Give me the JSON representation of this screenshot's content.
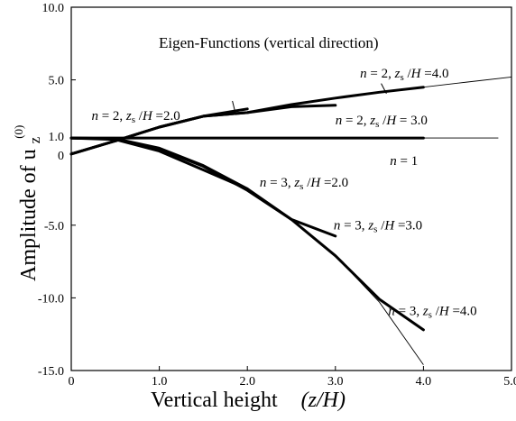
{
  "chart_data": {
    "type": "line",
    "title": "Eigen-Functions (vertical direction)",
    "xlabel_text": "Vertical height",
    "xlabel_var": "(z/H)",
    "ylabel_text": "Amplitude of u",
    "ylabel_sub": "z",
    "ylabel_sup": "(0)",
    "xlim": [
      0,
      5
    ],
    "ylim": [
      -15,
      10
    ],
    "grid": false,
    "legend": "none",
    "x_ticks": [
      0,
      1,
      2,
      3,
      4,
      5
    ],
    "x_tick_labels": [
      "0",
      "1.0",
      "2.0",
      "3.0",
      "4.0",
      "5.0"
    ],
    "y_ticks": [
      10,
      5,
      1,
      0,
      -5,
      -10,
      -15
    ],
    "y_tick_labels": [
      "10.0",
      "5.0",
      "1.0",
      "0",
      "-5.0",
      "-10.0",
      "-15.0"
    ],
    "reference_curves": [
      {
        "x": [
          0,
          0.5,
          1.0,
          1.5,
          2.0,
          2.5,
          3.0,
          3.5,
          4.0,
          4.5,
          5.0
        ],
        "y": [
          -0.1,
          0.8,
          1.75,
          2.5,
          2.75,
          3.3,
          3.75,
          4.15,
          4.5,
          4.85,
          5.2
        ]
      },
      {
        "x": [
          0,
          4.85
        ],
        "y": [
          1,
          1
        ]
      },
      {
        "x": [
          0,
          0.5,
          1.0,
          1.5,
          2.0,
          2.5,
          3.0,
          3.5,
          4.0
        ],
        "y": [
          1,
          0.95,
          0.3,
          -0.9,
          -2.5,
          -4.6,
          -7.1,
          -10.3,
          -14.6
        ]
      }
    ],
    "series": [
      {
        "x": [
          0,
          0.5,
          1.0,
          1.5,
          2.0
        ],
        "y": [
          -0.1,
          0.8,
          1.75,
          2.5,
          3.0
        ]
      },
      {
        "x": [
          0,
          0.5,
          1.0,
          1.5,
          2.0,
          2.5,
          3.0
        ],
        "y": [
          -0.1,
          0.8,
          1.75,
          2.5,
          2.75,
          3.15,
          3.25
        ]
      },
      {
        "x": [
          0,
          0.5,
          1.0,
          1.5,
          2.0,
          2.5,
          3.0,
          3.5,
          4.0
        ],
        "y": [
          -0.1,
          0.8,
          1.75,
          2.5,
          2.75,
          3.3,
          3.75,
          4.15,
          4.5
        ]
      },
      {
        "x": [
          0,
          4.0
        ],
        "y": [
          1,
          1
        ]
      },
      {
        "x": [
          0,
          0.5,
          1.0,
          1.5,
          2.0
        ],
        "y": [
          1,
          0.9,
          0.1,
          -1.2,
          -2.5
        ]
      },
      {
        "x": [
          0,
          0.5,
          1.0,
          1.5,
          2.0,
          2.5,
          3.0
        ],
        "y": [
          1,
          0.95,
          0.25,
          -0.95,
          -2.6,
          -4.6,
          -5.75
        ]
      },
      {
        "x": [
          0,
          0.5,
          1.0,
          1.5,
          2.0,
          2.5,
          3.0,
          3.5,
          4.0
        ],
        "y": [
          1,
          0.95,
          0.3,
          -0.9,
          -2.5,
          -4.6,
          -7.1,
          -10.1,
          -12.2
        ]
      }
    ],
    "annotations": [
      {
        "n": "n",
        "eq1": " = 2, ",
        "zs": "z",
        "s": "s",
        "mid": " /",
        "H": "H",
        "eq2": " =2.0",
        "x": 0.23,
        "y": 2.25,
        "pointer": {
          "x1": 1.87,
          "y1": 2.58,
          "x2": 1.83,
          "y2": 3.55
        }
      },
      {
        "n": "n",
        "eq1": " = 2, ",
        "zs": "z",
        "s": "s",
        "mid": " /",
        "H": "H",
        "eq2": " =4.0",
        "x": 3.28,
        "y": 5.15,
        "pointer": {
          "x1": 3.58,
          "y1": 4.05,
          "x2": 3.52,
          "y2": 4.75
        }
      },
      {
        "n": "n",
        "eq1": " = 2, ",
        "zs": "z",
        "s": "s",
        "mid": " /",
        "H": "H",
        "eq2": " = 3.0",
        "x": 3.0,
        "y": 1.95
      },
      {
        "n": "n",
        "eq1": " = 1",
        "x": 3.62,
        "y": -0.85
      },
      {
        "n": "n",
        "eq1": " = 3, ",
        "zs": "z",
        "s": "s",
        "mid": " /",
        "H": "H",
        "eq2": " =2.0",
        "x": 2.14,
        "y": -2.35
      },
      {
        "n": "n",
        "eq1": " = 3, ",
        "zs": "z",
        "s": "s",
        "mid": " /",
        "H": "H",
        "eq2": " =3.0",
        "x": 2.98,
        "y": -5.3
      },
      {
        "n": "n",
        "eq1": " = 3, ",
        "zs": "z",
        "s": "s",
        "mid": " /",
        "H": "H",
        "eq2": " =4.0",
        "x": 3.6,
        "y": -11.2
      }
    ]
  }
}
